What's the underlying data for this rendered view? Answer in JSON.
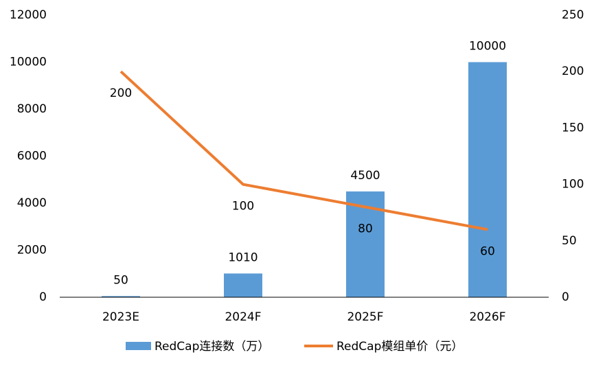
{
  "chart_data": {
    "type": "bar",
    "categories": [
      "2023E",
      "2024F",
      "2025F",
      "2026F"
    ],
    "series": [
      {
        "name": "RedCap连接数（万）",
        "type": "bar",
        "color": "#5b9bd5",
        "values": [
          50,
          1010,
          4500,
          10000
        ]
      },
      {
        "name": "RedCap模组单价（元）",
        "type": "line",
        "axis": "y2",
        "color": "#ed7d31",
        "values": [
          200,
          100,
          80,
          60
        ]
      }
    ],
    "ylim": [
      0,
      12000
    ],
    "yticks": [
      0,
      2000,
      4000,
      6000,
      8000,
      10000,
      12000
    ],
    "y2lim": [
      0,
      250
    ],
    "y2ticks": [
      0,
      50,
      100,
      150,
      200,
      250
    ],
    "grid": false,
    "legend": "bottom"
  }
}
